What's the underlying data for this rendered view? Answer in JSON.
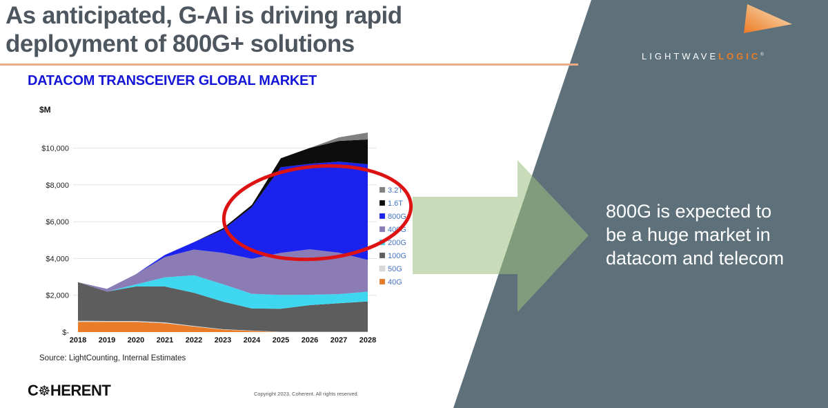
{
  "slide": {
    "title": {
      "line1": "As anticipated, G-AI is driving rapid",
      "line2": "deployment of 800G+ solutions"
    },
    "accent_line_color": "#ecab81",
    "panel_color": "#5e717a",
    "arrow_color": "#9cc07f"
  },
  "chart": {
    "heading": "DATACOM TRANSCEIVER GLOBAL MARKET",
    "heading_color": "#1515d8"
  },
  "chart_data": {
    "type": "area",
    "stacked": true,
    "title": "DATACOM TRANSCEIVER GLOBAL MARKET",
    "unit_label": "$M",
    "xlabel": "",
    "ylabel": "$M",
    "ylim": [
      0,
      11000
    ],
    "grid": true,
    "legend_position": "right",
    "legend_text_color": "#4472c4",
    "categories": [
      "2018",
      "2019",
      "2020",
      "2021",
      "2022",
      "2023",
      "2024",
      "2025",
      "2026",
      "2027",
      "2028"
    ],
    "y_tick_values": [
      0,
      2000,
      4000,
      6000,
      8000,
      10000
    ],
    "y_tick_labels": [
      "$-",
      "$2,000",
      "$4,000",
      "$6,000",
      "$8,000",
      "$10,000"
    ],
    "series": [
      {
        "name": "40G",
        "color": "#e97c28",
        "values": [
          550,
          550,
          550,
          480,
          300,
          130,
          60,
          0,
          0,
          0,
          0
        ]
      },
      {
        "name": "50G",
        "color": "#d9d9d9",
        "values": [
          60,
          50,
          50,
          45,
          35,
          25,
          20,
          15,
          15,
          15,
          15
        ]
      },
      {
        "name": "100G",
        "color": "#5d5d5d",
        "values": [
          2100,
          1600,
          1875,
          1950,
          1800,
          1500,
          1200,
          1250,
          1450,
          1550,
          1650
        ]
      },
      {
        "name": "200G",
        "color": "#3fd7f0",
        "values": [
          0,
          0,
          115,
          500,
          950,
          950,
          800,
          750,
          560,
          500,
          530
        ]
      },
      {
        "name": "400G",
        "color": "#8b7cb5",
        "values": [
          0,
          150,
          560,
          1100,
          1400,
          1700,
          1900,
          2290,
          2475,
          2250,
          1725
        ]
      },
      {
        "name": "800G",
        "color": "#1c22ee",
        "values": [
          0,
          0,
          0,
          120,
          400,
          1250,
          2800,
          4650,
          4650,
          4950,
          5200
        ]
      },
      {
        "name": "1.6T",
        "color": "#0d0d0d",
        "values": [
          0,
          0,
          0,
          0,
          0,
          80,
          130,
          490,
          860,
          1125,
          1350
        ]
      },
      {
        "name": "3.2T",
        "color": "#808080",
        "values": [
          0,
          0,
          0,
          0,
          0,
          0,
          0,
          0,
          0,
          190,
          375
        ]
      }
    ],
    "annotation": {
      "type": "ellipse",
      "color": "#dd1212",
      "highlights": "800G ramp 2023-2028"
    }
  },
  "callout": {
    "lines": [
      "800G is expected to",
      "be a huge market in",
      "datacom and telecom"
    ]
  },
  "brand": {
    "lightwave": "LIGHTWAVE",
    "logic": "LOGIC",
    "reg_mark": "®",
    "triangle_color_dark": "#ed7a23",
    "triangle_color_light": "#f9e9c8"
  },
  "footer": {
    "source": "Source: LightCounting, Internal Estimates",
    "copyright": "Copyright 2023, Coherent. All rights reserved.",
    "coherent": {
      "prefix": "C",
      "o_glyph": "☸",
      "suffix": "HERENT"
    }
  }
}
